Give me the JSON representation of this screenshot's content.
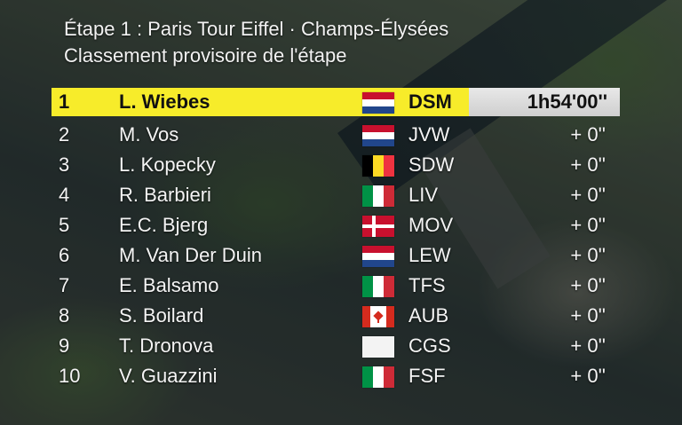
{
  "header": {
    "title": "Étape 1 : Paris Tour Eiffel · Champs-Élysées",
    "subtitle": "Classement provisoire de l'étape"
  },
  "standings": [
    {
      "pos": "1",
      "name": "L. Wiebes",
      "team": "DSM",
      "gap": "1h54'00''",
      "flag": "netherlands-flag-icon"
    },
    {
      "pos": "2",
      "name": "M. Vos",
      "team": "JVW",
      "gap": "+ 0''",
      "flag": "netherlands-flag-icon"
    },
    {
      "pos": "3",
      "name": "L. Kopecky",
      "team": "SDW",
      "gap": "+ 0''",
      "flag": "belgium-flag-icon"
    },
    {
      "pos": "4",
      "name": "R. Barbieri",
      "team": "LIV",
      "gap": "+ 0''",
      "flag": "italy-flag-icon"
    },
    {
      "pos": "5",
      "name": "E.C. Bjerg",
      "team": "MOV",
      "gap": "+ 0''",
      "flag": "denmark-flag-icon"
    },
    {
      "pos": "6",
      "name": "M. Van Der Duin",
      "team": "LEW",
      "gap": "+ 0''",
      "flag": "netherlands-flag-icon"
    },
    {
      "pos": "7",
      "name": "E. Balsamo",
      "team": "TFS",
      "gap": "+ 0''",
      "flag": "italy-flag-icon"
    },
    {
      "pos": "8",
      "name": "S. Boilard",
      "team": "AUB",
      "gap": "+ 0''",
      "flag": "canada-flag-icon"
    },
    {
      "pos": "9",
      "name": "T. Dronova",
      "team": "CGS",
      "gap": "+ 0''",
      "flag": "blank-flag-icon"
    },
    {
      "pos": "10",
      "name": "V. Guazzini",
      "team": "FSF",
      "gap": "+ 0''",
      "flag": "italy-flag-icon"
    }
  ],
  "colors": {
    "leader_bar": "#f7ec2a",
    "leader_time_box": "#d9d9d9",
    "text": "#f4f4f4"
  }
}
